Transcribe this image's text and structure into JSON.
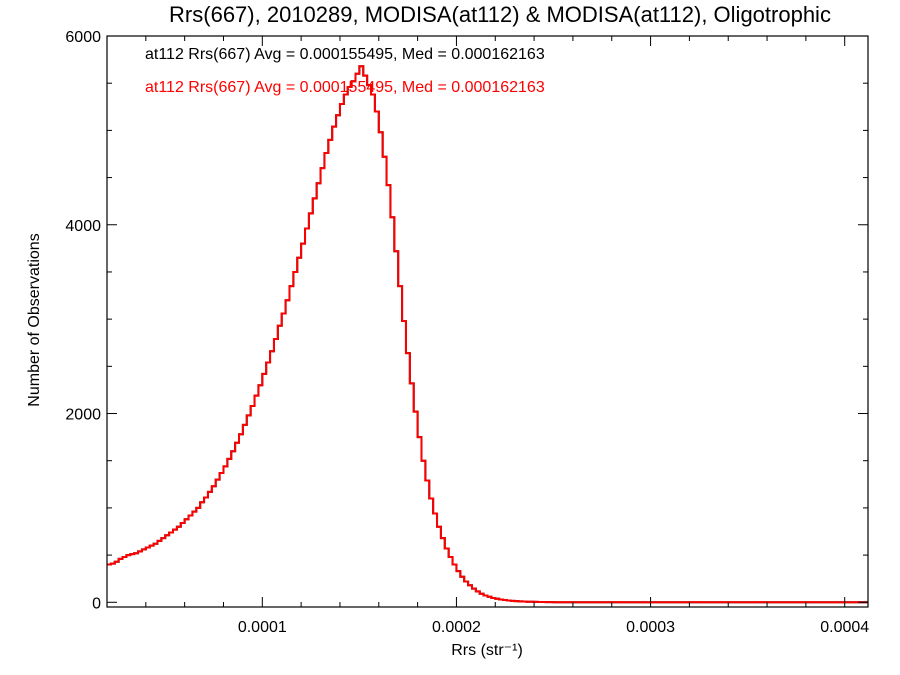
{
  "chart_data": {
    "type": "histogram",
    "title": "Rrs(667), 2010289, MODISA(at112) & MODISA(at112), Oligotrophic",
    "xlabel": "Rrs (str⁻¹)",
    "ylabel": "Number of Observations",
    "xlim": [
      2e-05,
      0.000412
    ],
    "ylim": [
      -50,
      6000
    ],
    "x_ticks": [
      0.0001,
      0.0002,
      0.0003,
      0.0004
    ],
    "x_tick_labels": [
      "0.0001",
      "0.0002",
      "0.0003",
      "0.0004"
    ],
    "y_ticks": [
      0,
      2000,
      4000,
      6000
    ],
    "y_tick_labels": [
      "0",
      "2000",
      "4000",
      "6000"
    ],
    "annotations": [
      {
        "text": "at112 Rrs(667) Avg = 0.000155495, Med = 0.000162163",
        "color": "#000000"
      },
      {
        "text": "at112 Rrs(667) Avg = 0.000155495, Med = 0.000162163",
        "color": "#ff0000"
      }
    ],
    "series": [
      {
        "color": "#ff0000",
        "draw_order": 2
      },
      {
        "color": "#000000",
        "draw_order": 1
      }
    ],
    "bin_width": 2e-06,
    "x_start": 2e-05,
    "values": [
      400,
      410,
      430,
      460,
      480,
      500,
      510,
      520,
      540,
      560,
      580,
      600,
      620,
      650,
      680,
      710,
      740,
      770,
      800,
      840,
      880,
      920,
      960,
      1000,
      1060,
      1110,
      1170,
      1230,
      1300,
      1370,
      1440,
      1520,
      1600,
      1690,
      1780,
      1880,
      1980,
      2080,
      2190,
      2300,
      2420,
      2540,
      2660,
      2790,
      2930,
      3060,
      3200,
      3350,
      3500,
      3650,
      3800,
      3960,
      4120,
      4280,
      4440,
      4600,
      4760,
      4900,
      5040,
      5160,
      5280,
      5380,
      5460,
      5520,
      5600,
      5680,
      5580,
      5480,
      5380,
      5200,
      4980,
      4720,
      4420,
      4080,
      3720,
      3350,
      2980,
      2640,
      2320,
      2020,
      1750,
      1500,
      1290,
      1100,
      940,
      800,
      680,
      570,
      480,
      400,
      330,
      270,
      220,
      180,
      145,
      115,
      90,
      72,
      58,
      46,
      37,
      30,
      24,
      19,
      15,
      12,
      10,
      8,
      6,
      5,
      4,
      3,
      3,
      2,
      2,
      1,
      1,
      1,
      1,
      1,
      0,
      0,
      0,
      0,
      0,
      0,
      0,
      0,
      0,
      0,
      0,
      0,
      0,
      0,
      0,
      0,
      0,
      0,
      0,
      0,
      0,
      0,
      0,
      0,
      0,
      0,
      0,
      0,
      0,
      0,
      0,
      0,
      0,
      0,
      0,
      0,
      0,
      0,
      0,
      0,
      0,
      0,
      0,
      0,
      0,
      0,
      0,
      0,
      0,
      0,
      0,
      0,
      0,
      0,
      0,
      0,
      0,
      0,
      0,
      0,
      0,
      0,
      0,
      0,
      0,
      0,
      0,
      0,
      0,
      0,
      0,
      0,
      0,
      0,
      0,
      0
    ],
    "grid": false,
    "legend": "none"
  }
}
